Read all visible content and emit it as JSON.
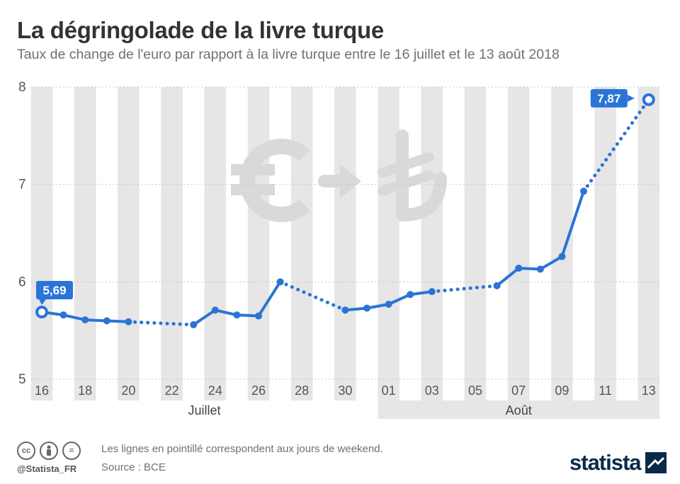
{
  "title": "La dégringolade de la livre turque",
  "subtitle": "Taux de change de l'euro par rapport à la livre turque entre le 16 juillet et le 13 août 2018",
  "footer": {
    "note": "Les lignes en pointillé correspondent aux jours de weekend.",
    "source": "Source : BCE",
    "handle": "@Statista_FR",
    "brand": "statista",
    "icons": [
      "cc-icon",
      "by-icon",
      "nd-icon"
    ]
  },
  "colors": {
    "series": "#2a74d6",
    "band": "#e6e6e6",
    "watermark": "#d9d9d9",
    "label_bg": "#2a74d6"
  },
  "chart_data": {
    "type": "line",
    "categories": [
      "16",
      "17",
      "18",
      "19",
      "20",
      "21",
      "22",
      "23",
      "24",
      "25",
      "26",
      "27",
      "28",
      "29",
      "30",
      "31",
      "01",
      "02",
      "03",
      "04",
      "05",
      "06",
      "07",
      "08",
      "09",
      "10",
      "11",
      "12",
      "13"
    ],
    "tick_labels": [
      "16",
      "18",
      "20",
      "22",
      "24",
      "26",
      "28",
      "30",
      "01",
      "03",
      "05",
      "07",
      "09",
      "11",
      "13"
    ],
    "month_labels": [
      "Juillet",
      "Août"
    ],
    "ylim": [
      5,
      8
    ],
    "yticks": [
      5,
      6,
      7,
      8
    ],
    "grid": true,
    "series": [
      {
        "values": [
          5.69,
          5.66,
          5.61,
          5.6,
          5.59,
          null,
          null,
          5.56,
          5.71,
          5.66,
          5.65,
          6.0,
          null,
          null,
          5.71,
          5.73,
          5.77,
          5.87,
          5.9,
          null,
          null,
          5.96,
          6.14,
          6.13,
          6.26,
          6.93,
          null,
          null,
          7.87
        ],
        "weekend_dotted": true
      }
    ],
    "annotations": [
      {
        "category": "16",
        "text": "5,69"
      },
      {
        "category": "13",
        "text": "7,87"
      }
    ]
  }
}
